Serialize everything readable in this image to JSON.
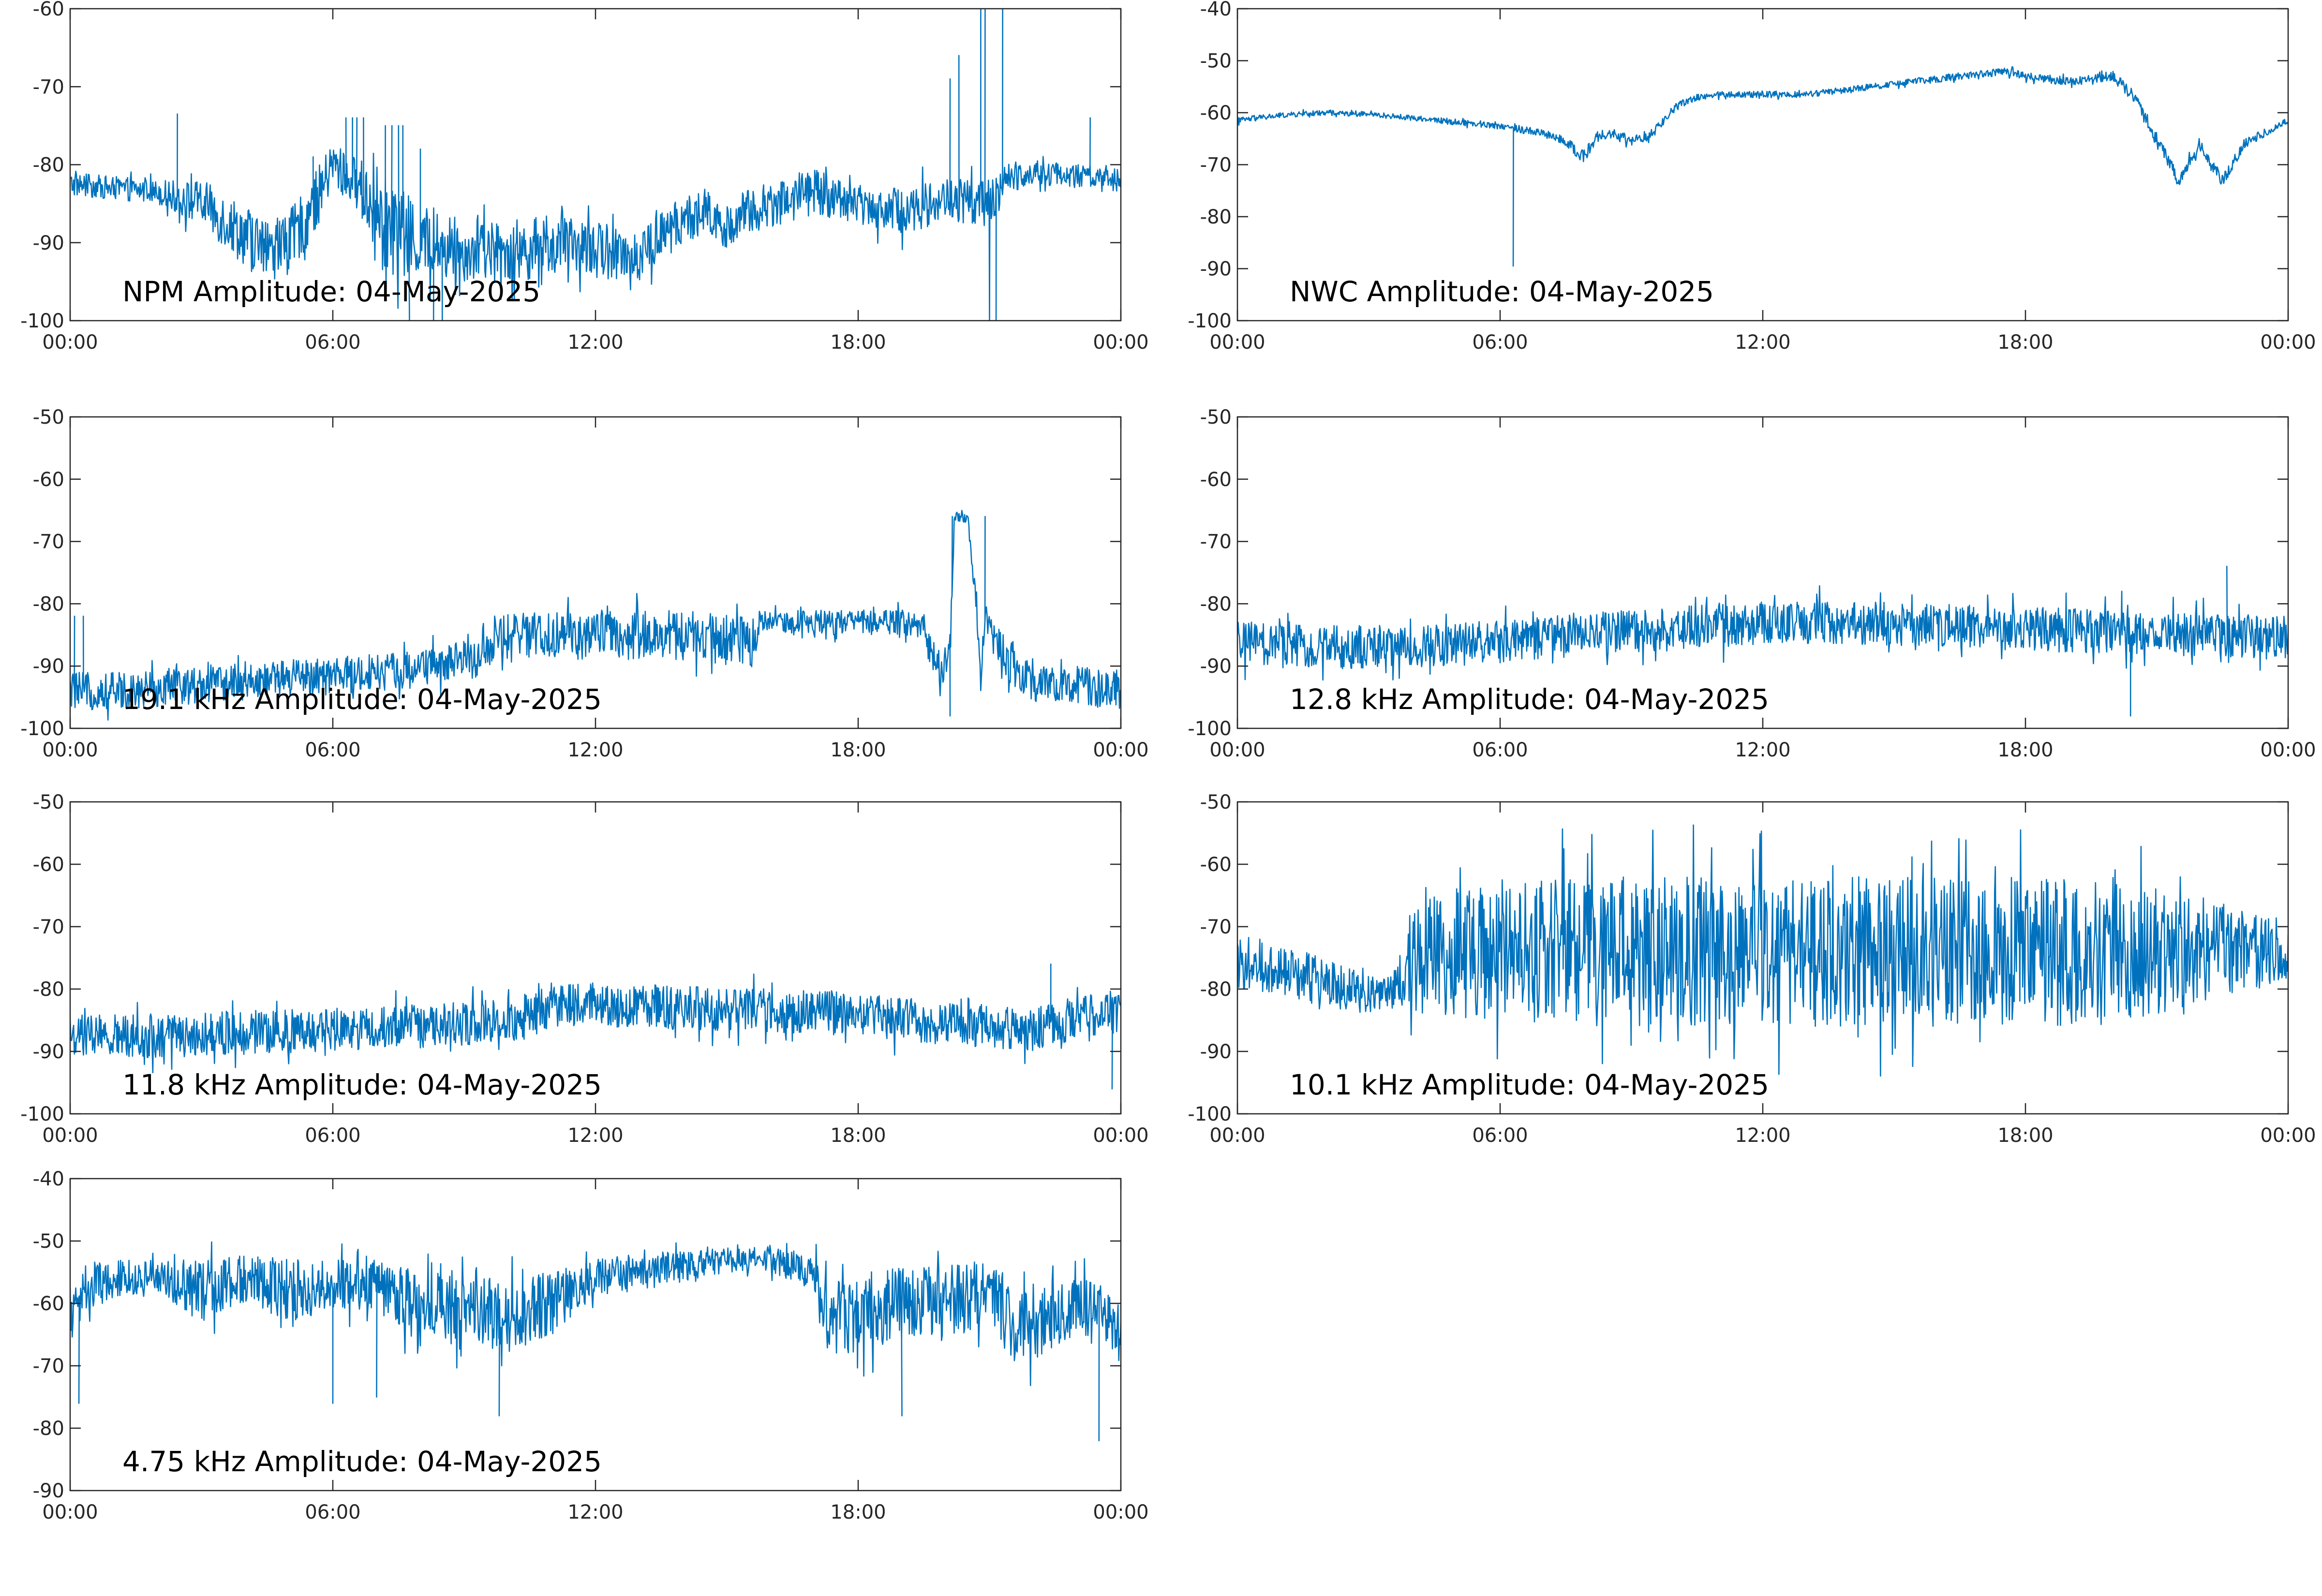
{
  "figure": {
    "line_color": "#0072BD",
    "axis_color": "#262626"
  },
  "chart_data": [
    {
      "type": "line",
      "title": "NPM Amplitude: 04-May-2025",
      "xlabel": "",
      "ylabel": "",
      "xlim": [
        "00:00",
        "24:00"
      ],
      "ylim": [
        -100,
        -60
      ],
      "xticks": [
        "00:00",
        "06:00",
        "12:00",
        "18:00",
        "00:00"
      ],
      "yticks": [
        "-60",
        "-70",
        "-80",
        "-90",
        "-100"
      ],
      "grid": false,
      "series": [
        {
          "hours": [
            0,
            1,
            2,
            3,
            4,
            4.5,
            5,
            5.5,
            6,
            6.5,
            7,
            7.5,
            8,
            9,
            10,
            11,
            12,
            13,
            14,
            14.5,
            15,
            15.5,
            16,
            17,
            18,
            19,
            20,
            21,
            21.5,
            22,
            23,
            24
          ],
          "center": [
            -82.5,
            -83,
            -83.5,
            -85,
            -89,
            -91,
            -90,
            -86,
            -80,
            -82,
            -86,
            -89,
            -90,
            -91,
            -91,
            -90.5,
            -91,
            -91.5,
            -87,
            -86,
            -88,
            -86,
            -85,
            -83.5,
            -85,
            -86,
            -84.5,
            -85,
            -81.5,
            -81,
            -81.5,
            -82
          ],
          "spread": [
            1.5,
            1.5,
            1.5,
            3,
            4,
            4,
            4,
            4,
            3,
            3,
            6,
            6,
            5,
            4,
            4,
            4,
            3.5,
            3.5,
            3,
            3,
            3,
            3,
            3,
            3,
            2.5,
            3,
            3,
            3,
            2,
            1.5,
            1.5,
            1.5
          ],
          "spikes": [
            [
              2.45,
              -73.5
            ],
            [
              4.3,
              -92
            ],
            [
              5.55,
              -79
            ],
            [
              6.3,
              -74
            ],
            [
              6.45,
              -74
            ],
            [
              6.55,
              -74
            ],
            [
              6.7,
              -74
            ],
            [
              7.2,
              -75
            ],
            [
              7.35,
              -75
            ],
            [
              7.5,
              -75
            ],
            [
              7.6,
              -75
            ],
            [
              7.75,
              -100
            ],
            [
              8.0,
              -78
            ],
            [
              8.3,
              -100
            ],
            [
              8.5,
              -100
            ],
            [
              20.1,
              -69
            ],
            [
              20.3,
              -66
            ],
            [
              20.8,
              -60
            ],
            [
              20.9,
              -60
            ],
            [
              21.0,
              -100
            ],
            [
              21.15,
              -100
            ],
            [
              21.3,
              -60
            ],
            [
              23.3,
              -74
            ]
          ]
        }
      ]
    },
    {
      "type": "line",
      "title": "NWC Amplitude: 04-May-2025",
      "xlabel": "",
      "ylabel": "",
      "xlim": [
        "00:00",
        "24:00"
      ],
      "ylim": [
        -100,
        -40
      ],
      "xticks": [
        "00:00",
        "06:00",
        "12:00",
        "18:00",
        "00:00"
      ],
      "yticks": [
        "-40",
        "-50",
        "-60",
        "-70",
        "-80",
        "-90",
        "-100"
      ],
      "grid": false,
      "series": [
        {
          "hours": [
            0,
            1,
            2,
            3,
            4,
            5,
            6,
            7,
            7.5,
            7.9,
            8.2,
            8.6,
            9,
            9.5,
            10,
            10.5,
            11,
            12,
            13,
            14,
            15,
            16,
            17,
            17.5,
            18,
            19,
            20,
            20.5,
            21,
            21.5,
            22,
            22.5,
            23,
            24
          ],
          "center": [
            -61.5,
            -60.5,
            -60,
            -60.3,
            -61,
            -61.8,
            -62.5,
            -64,
            -65.5,
            -68.5,
            -65,
            -64,
            -65.5,
            -64,
            -59,
            -57,
            -56.5,
            -56.5,
            -56.5,
            -55.5,
            -54.5,
            -53.5,
            -52.5,
            -52,
            -53,
            -54,
            -53,
            -57,
            -65,
            -73,
            -66.5,
            -73,
            -66,
            -61.5
          ],
          "spread": [
            0.6,
            0.5,
            0.5,
            0.5,
            0.5,
            0.6,
            0.7,
            0.8,
            0.9,
            1.2,
            1,
            1,
            0.9,
            1,
            0.8,
            0.6,
            0.6,
            0.6,
            0.6,
            0.6,
            0.6,
            0.7,
            0.7,
            0.7,
            0.8,
            0.8,
            1,
            1.2,
            1.2,
            1.4,
            1.2,
            1.2,
            1,
            0.6
          ],
          "spikes": [
            [
              6.3,
              -89.5
            ]
          ]
        }
      ]
    },
    {
      "type": "line",
      "title": "19.1 kHz Amplitude: 04-May-2025",
      "xlabel": "",
      "ylabel": "",
      "xlim": [
        "00:00",
        "24:00"
      ],
      "ylim": [
        -100,
        -50
      ],
      "xticks": [
        "00:00",
        "06:00",
        "12:00",
        "18:00",
        "00:00"
      ],
      "yticks": [
        "-50",
        "-60",
        "-70",
        "-80",
        "-90",
        "-100"
      ],
      "grid": false,
      "series": [
        {
          "hours": [
            0,
            1,
            2,
            3,
            4,
            5,
            6,
            7,
            8,
            9,
            9.35,
            9.45,
            10,
            11,
            12,
            13,
            14,
            15,
            15.6,
            15.75,
            16,
            17,
            18,
            19,
            19.5,
            19.7,
            20.1,
            20.2,
            20.3,
            20.5,
            20.8,
            20.9,
            21.5,
            22,
            23,
            24
          ],
          "center": [
            -94,
            -94,
            -93.5,
            -93,
            -92.5,
            -92,
            -91.5,
            -91,
            -90.5,
            -89,
            -89,
            -86,
            -85.5,
            -85,
            -85,
            -85,
            -85,
            -85,
            -86,
            -83,
            -83,
            -83,
            -83,
            -83,
            -83.5,
            -90,
            -88,
            -66,
            -66,
            -66,
            -90,
            -83,
            -90,
            -93,
            -93,
            -94
          ],
          "spread": [
            3,
            3,
            3,
            3,
            3,
            3,
            3,
            3,
            3,
            3,
            3,
            4,
            4,
            4,
            4,
            4,
            4,
            4,
            4,
            2,
            2,
            2,
            2,
            2,
            2,
            4,
            4,
            1,
            1,
            1,
            4,
            3,
            3,
            3,
            3,
            3
          ],
          "spikes": [
            [
              0.1,
              -82
            ],
            [
              0.3,
              -82
            ],
            [
              20.1,
              -98
            ],
            [
              20.15,
              -66
            ],
            [
              20.9,
              -66
            ]
          ]
        }
      ]
    },
    {
      "type": "line",
      "title": "12.8 kHz Amplitude: 04-May-2025",
      "xlabel": "",
      "ylabel": "",
      "xlim": [
        "00:00",
        "24:00"
      ],
      "ylim": [
        -100,
        -50
      ],
      "xticks": [
        "00:00",
        "06:00",
        "12:00",
        "18:00",
        "00:00"
      ],
      "yticks": [
        "-50",
        "-60",
        "-70",
        "-80",
        "-90",
        "-100"
      ],
      "grid": false,
      "series": [
        {
          "hours": [
            0,
            2,
            4,
            6,
            8,
            10,
            12,
            14,
            16,
            18,
            20,
            22,
            24
          ],
          "center": [
            -86.5,
            -87,
            -87,
            -86,
            -85,
            -84,
            -83,
            -83,
            -83.5,
            -84,
            -84.5,
            -85,
            -85.5
          ],
          "spread": [
            3.5,
            3.5,
            3.5,
            3.5,
            3.5,
            3.5,
            3.5,
            3.5,
            3.5,
            3.5,
            3.5,
            3.5,
            3.5
          ],
          "spikes": [
            [
              3.8,
              -99
            ],
            [
              20.2,
              -78
            ],
            [
              22.6,
              -74
            ],
            [
              20.4,
              -98
            ]
          ]
        }
      ]
    },
    {
      "type": "line",
      "title": "11.8 kHz Amplitude: 04-May-2025",
      "xlabel": "",
      "ylabel": "",
      "xlim": [
        "00:00",
        "24:00"
      ],
      "ylim": [
        -100,
        -50
      ],
      "xticks": [
        "00:00",
        "06:00",
        "12:00",
        "18:00",
        "00:00"
      ],
      "yticks": [
        "-50",
        "-60",
        "-70",
        "-80",
        "-90",
        "-100"
      ],
      "grid": false,
      "series": [
        {
          "hours": [
            0,
            2,
            4,
            6,
            8,
            10,
            11,
            12,
            14,
            16,
            18,
            20,
            22,
            23,
            24
          ],
          "center": [
            -87.5,
            -87.5,
            -87,
            -86.5,
            -86,
            -85,
            -83,
            -82.5,
            -83,
            -83.5,
            -84,
            -85.5,
            -86.5,
            -84.5,
            -83.5
          ],
          "spread": [
            3.5,
            3.5,
            3.5,
            3.5,
            3.5,
            3.5,
            3.5,
            3.5,
            3.5,
            3.5,
            3.5,
            3.5,
            3.5,
            3.5,
            3.5
          ],
          "spikes": [
            [
              23.8,
              -96
            ],
            [
              22.4,
              -76
            ]
          ]
        }
      ]
    },
    {
      "type": "line",
      "title": "10.1 kHz Amplitude: 04-May-2025",
      "xlabel": "",
      "ylabel": "",
      "xlim": [
        "00:00",
        "24:00"
      ],
      "ylim": [
        -100,
        -50
      ],
      "xticks": [
        "00:00",
        "06:00",
        "12:00",
        "18:00",
        "00:00"
      ],
      "yticks": [
        "-50",
        "-60",
        "-70",
        "-80",
        "-90",
        "-100"
      ],
      "grid": false,
      "series": [
        {
          "hours": [
            0,
            1,
            2,
            3,
            3.6,
            4,
            6,
            8,
            10,
            12,
            14,
            16,
            18,
            20,
            22,
            24
          ],
          "center": [
            -76,
            -77,
            -79,
            -81,
            -80,
            -75,
            -74,
            -74,
            -74,
            -74,
            -74,
            -74,
            -74,
            -74,
            -74,
            -74
          ],
          "spread": [
            4,
            4,
            4,
            3,
            3,
            9,
            11,
            12,
            12,
            12,
            12,
            12,
            12,
            12,
            8,
            5
          ],
          "spikes": []
        }
      ]
    },
    {
      "type": "line",
      "title": "4.75 kHz Amplitude: 04-May-2025",
      "xlabel": "",
      "ylabel": "",
      "xlim": [
        "00:00",
        "24:00"
      ],
      "ylim": [
        -90,
        -40
      ],
      "xticks": [
        "00:00",
        "06:00",
        "12:00",
        "18:00",
        "00:00"
      ],
      "yticks": [
        "-40",
        "-50",
        "-60",
        "-70",
        "-80",
        "-90"
      ],
      "grid": false,
      "series": [
        {
          "hours": [
            0,
            0.5,
            1,
            2,
            3,
            4,
            5,
            6,
            7,
            8,
            9,
            10,
            11,
            12,
            13,
            14,
            15,
            16,
            17,
            17.2,
            18,
            19,
            20,
            21,
            21.5,
            22,
            23,
            24
          ],
          "center": [
            -62,
            -57,
            -56,
            -56,
            -58,
            -56,
            -58,
            -57,
            -57,
            -61,
            -60,
            -62,
            -60,
            -56,
            -55,
            -54,
            -53,
            -53,
            -55,
            -62,
            -62,
            -60,
            -60,
            -58,
            -64,
            -63,
            -60,
            -65
          ],
          "spread": [
            5,
            4,
            3,
            3,
            5,
            4,
            5,
            4,
            4,
            6,
            6,
            6,
            5,
            3,
            3,
            2.5,
            2,
            2,
            3,
            6,
            6,
            6,
            6,
            5,
            6,
            6,
            5,
            5
          ],
          "spikes": [
            [
              6.0,
              -76
            ],
            [
              7.0,
              -75
            ],
            [
              9.8,
              -78
            ],
            [
              19.0,
              -78
            ],
            [
              23.5,
              -82
            ],
            [
              0.2,
              -76
            ]
          ]
        }
      ]
    }
  ]
}
